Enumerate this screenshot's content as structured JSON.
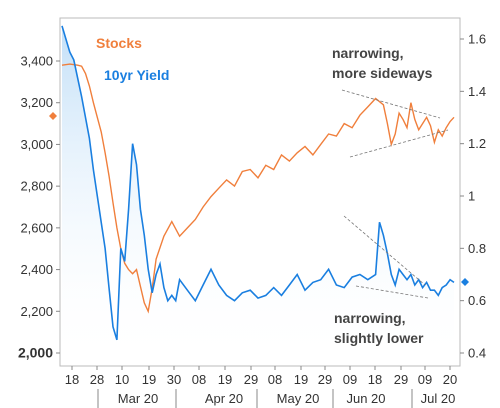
{
  "chart_data": {
    "type": "line",
    "title": "",
    "xlabel": "",
    "ylabel_left": "",
    "ylabel_right": "",
    "x_ticks": [
      "18",
      "28",
      "10",
      "19",
      "30",
      "08",
      "19",
      "29",
      "08",
      "19",
      "29",
      "09",
      "18",
      "29",
      "09",
      "20"
    ],
    "x_months": [
      "Mar 20",
      "Apr 20",
      "May 20",
      "Jun 20",
      "Jul 20"
    ],
    "y_left": {
      "min": 2000,
      "max": 3600,
      "ticks": [
        "2,000",
        "2,200",
        "2,400",
        "2,600",
        "2,800",
        "3,000",
        "3,200",
        "3,400"
      ]
    },
    "y_right": {
      "min": 0.4,
      "max": 1.7,
      "ticks": [
        "0.4",
        "0.6",
        "0.8",
        "1",
        "1.2",
        "1.4",
        "1.6"
      ]
    },
    "legend": [
      {
        "name": "Stocks",
        "color": "#f07f3c",
        "axis": "left"
      },
      {
        "name": "10yr Yield",
        "color": "#1a7fe0",
        "axis": "right"
      }
    ],
    "series": [
      {
        "name": "Stocks",
        "axis": "left",
        "x": [
          0,
          4,
          8,
          10,
          12,
          14,
          16,
          18,
          20,
          22,
          24,
          26,
          28,
          30,
          32,
          34,
          36,
          38,
          40,
          42,
          44,
          46,
          48,
          52,
          56,
          60,
          64,
          68,
          72,
          76,
          80,
          84,
          88,
          92,
          96,
          100,
          104,
          108,
          112,
          116,
          120,
          124,
          128,
          132,
          136,
          140,
          144,
          148,
          152,
          156,
          160,
          164,
          166,
          168,
          170,
          172,
          174,
          176,
          178,
          180,
          182,
          184,
          186,
          188,
          190,
          192,
          194,
          196,
          198,
          200
        ],
        "values": [
          3380,
          3385,
          3380,
          3375,
          3340,
          3280,
          3200,
          3130,
          3060,
          2960,
          2850,
          2720,
          2600,
          2500,
          2430,
          2400,
          2380,
          2400,
          2320,
          2240,
          2200,
          2310,
          2450,
          2560,
          2630,
          2560,
          2600,
          2640,
          2700,
          2750,
          2790,
          2830,
          2800,
          2870,
          2880,
          2840,
          2900,
          2880,
          2950,
          2920,
          2960,
          2990,
          2950,
          3000,
          3050,
          3040,
          3100,
          3080,
          3140,
          3180,
          3220,
          3190,
          3100,
          3000,
          3050,
          3150,
          3120,
          3080,
          3200,
          3120,
          3070,
          3100,
          3130,
          3090,
          3010,
          3070,
          3040,
          3080,
          3110,
          3130
        ]
      },
      {
        "name": "10yr Yield",
        "axis": "right",
        "x": [
          0,
          2,
          4,
          6,
          8,
          10,
          12,
          14,
          16,
          18,
          20,
          22,
          24,
          26,
          28,
          30,
          32,
          34,
          36,
          38,
          40,
          42,
          44,
          46,
          48,
          50,
          52,
          54,
          56,
          58,
          60,
          64,
          68,
          72,
          76,
          80,
          84,
          88,
          92,
          96,
          100,
          104,
          108,
          112,
          116,
          120,
          124,
          128,
          132,
          136,
          140,
          144,
          148,
          152,
          156,
          160,
          162,
          164,
          166,
          168,
          170,
          172,
          174,
          176,
          178,
          180,
          182,
          184,
          186,
          188,
          190,
          192,
          194,
          196,
          198,
          200
        ],
        "values": [
          1.65,
          1.6,
          1.55,
          1.52,
          1.45,
          1.38,
          1.3,
          1.22,
          1.1,
          1.0,
          0.9,
          0.8,
          0.65,
          0.5,
          0.45,
          0.8,
          0.75,
          0.95,
          1.2,
          1.12,
          0.95,
          0.85,
          0.72,
          0.63,
          0.7,
          0.74,
          0.65,
          0.6,
          0.62,
          0.6,
          0.68,
          0.64,
          0.6,
          0.66,
          0.72,
          0.66,
          0.62,
          0.6,
          0.63,
          0.64,
          0.61,
          0.62,
          0.65,
          0.62,
          0.66,
          0.7,
          0.64,
          0.67,
          0.68,
          0.72,
          0.66,
          0.65,
          0.69,
          0.7,
          0.68,
          0.7,
          0.9,
          0.85,
          0.78,
          0.7,
          0.66,
          0.72,
          0.7,
          0.68,
          0.7,
          0.66,
          0.68,
          0.65,
          0.67,
          0.64,
          0.64,
          0.62,
          0.65,
          0.66,
          0.68,
          0.67
        ]
      }
    ],
    "annotations": [
      {
        "line1": "narrowing,",
        "line2": "more sideways"
      },
      {
        "line1": "narrowing,",
        "line2": "slightly lower"
      }
    ],
    "markers": {
      "left_value": 3130,
      "right_value": 0.67
    },
    "grid": false
  }
}
